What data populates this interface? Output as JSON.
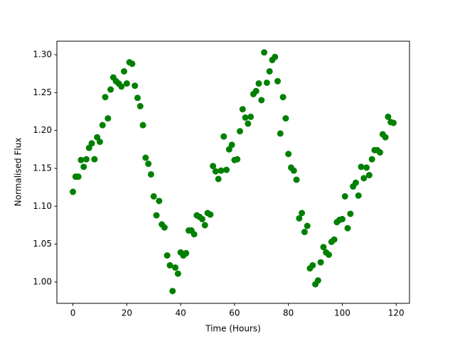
{
  "chart_data": {
    "type": "scatter",
    "xlabel": "Time (Hours)",
    "ylabel": "Normalised Flux",
    "color": "#008000",
    "x": [
      0,
      1,
      2,
      3,
      4,
      5,
      6,
      7,
      8,
      9,
      10,
      11,
      12,
      13,
      14,
      15,
      16,
      17,
      18,
      19,
      20,
      21,
      22,
      23,
      24,
      25,
      26,
      27,
      28,
      29,
      30,
      31,
      32,
      33,
      34,
      35,
      36,
      37,
      38,
      39,
      40,
      41,
      42,
      43,
      44,
      45,
      46,
      47,
      48,
      49,
      50,
      51,
      52,
      53,
      54,
      55,
      56,
      57,
      58,
      59,
      60,
      61,
      62,
      63,
      64,
      65,
      66,
      67,
      68,
      69,
      70,
      71,
      72,
      73,
      74,
      75,
      76,
      77,
      78,
      79,
      80,
      81,
      82,
      83,
      84,
      85,
      86,
      87,
      88,
      89,
      90,
      91,
      92,
      93,
      94,
      95,
      96,
      97,
      98,
      99,
      100,
      101,
      102,
      103,
      104,
      105,
      106,
      107,
      108,
      109,
      110,
      111,
      112,
      113,
      114,
      115,
      116,
      117,
      118,
      119
    ],
    "y": [
      1.119,
      1.139,
      1.139,
      1.161,
      1.152,
      1.162,
      1.177,
      1.183,
      1.162,
      1.191,
      1.185,
      1.207,
      1.244,
      1.216,
      1.254,
      1.27,
      1.265,
      1.262,
      1.258,
      1.278,
      1.262,
      1.29,
      1.288,
      1.259,
      1.243,
      1.232,
      1.207,
      1.164,
      1.156,
      1.142,
      1.113,
      1.088,
      1.107,
      1.076,
      1.072,
      1.035,
      1.022,
      0.988,
      1.019,
      1.011,
      1.039,
      1.035,
      1.038,
      1.068,
      1.068,
      1.063,
      1.088,
      1.086,
      1.083,
      1.075,
      1.091,
      1.089,
      1.153,
      1.146,
      1.136,
      1.147,
      1.192,
      1.148,
      1.175,
      1.181,
      1.161,
      1.162,
      1.199,
      1.228,
      1.217,
      1.209,
      1.218,
      1.248,
      1.252,
      1.262,
      1.24,
      1.303,
      1.263,
      1.278,
      1.293,
      1.297,
      1.265,
      1.196,
      1.244,
      1.216,
      1.169,
      1.151,
      1.147,
      1.135,
      1.084,
      1.091,
      1.066,
      1.074,
      1.018,
      1.022,
      0.997,
      1.002,
      1.026,
      1.046,
      1.039,
      1.036,
      1.053,
      1.056,
      1.079,
      1.082,
      1.083,
      1.113,
      1.071,
      1.09,
      1.126,
      1.131,
      1.114,
      1.152,
      1.137,
      1.151,
      1.141,
      1.162,
      1.174,
      1.174,
      1.171,
      1.195,
      1.191,
      1.218,
      1.211,
      1.21
    ],
    "xlim": [
      -5.95,
      124.95
    ],
    "ylim": [
      0.9718,
      1.3178
    ],
    "xticks": [
      0,
      20,
      40,
      60,
      80,
      100,
      120
    ],
    "yticks": [
      {
        "value": 1.0,
        "label": "1.00"
      },
      {
        "value": 1.05,
        "label": "1.05"
      },
      {
        "value": 1.1,
        "label": "1.10"
      },
      {
        "value": 1.15,
        "label": "1.15"
      },
      {
        "value": 1.2,
        "label": "1.20"
      },
      {
        "value": 1.25,
        "label": "1.25"
      },
      {
        "value": 1.3,
        "label": "1.30"
      }
    ]
  }
}
